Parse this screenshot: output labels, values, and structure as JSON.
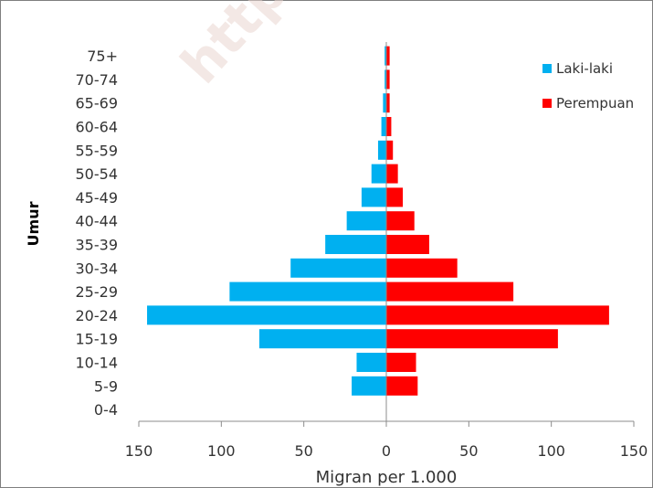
{
  "watermark": "http",
  "chart_data": {
    "type": "bar",
    "orientation": "horizontal",
    "layout": "population-pyramid",
    "categories": [
      "0-4",
      "5-9",
      "10-14",
      "15-19",
      "20-24",
      "25-29",
      "30-34",
      "35-39",
      "40-44",
      "45-49",
      "50-54",
      "55-59",
      "60-64",
      "65-69",
      "70-74",
      "75+"
    ],
    "series": [
      {
        "name": "Laki-laki",
        "color": "#00b0f0",
        "values": [
          0,
          21,
          18,
          77,
          145,
          95,
          58,
          37,
          24,
          15,
          9,
          5,
          3,
          2,
          1,
          1
        ]
      },
      {
        "name": "Perempuan",
        "color": "#ff0000",
        "values": [
          0,
          19,
          18,
          104,
          135,
          77,
          43,
          26,
          17,
          10,
          7,
          4,
          3,
          2,
          2,
          2
        ]
      }
    ],
    "xlabel": "Migran per 1.000",
    "ylabel": "Umur",
    "xlim": [
      -150,
      150
    ],
    "xticks": [
      -150,
      -100,
      -50,
      0,
      50,
      100,
      150
    ],
    "xtick_labels": [
      "150",
      "100",
      "50",
      "0",
      "50",
      "100",
      "150"
    ],
    "legend_position": "top-right",
    "grid": false
  }
}
